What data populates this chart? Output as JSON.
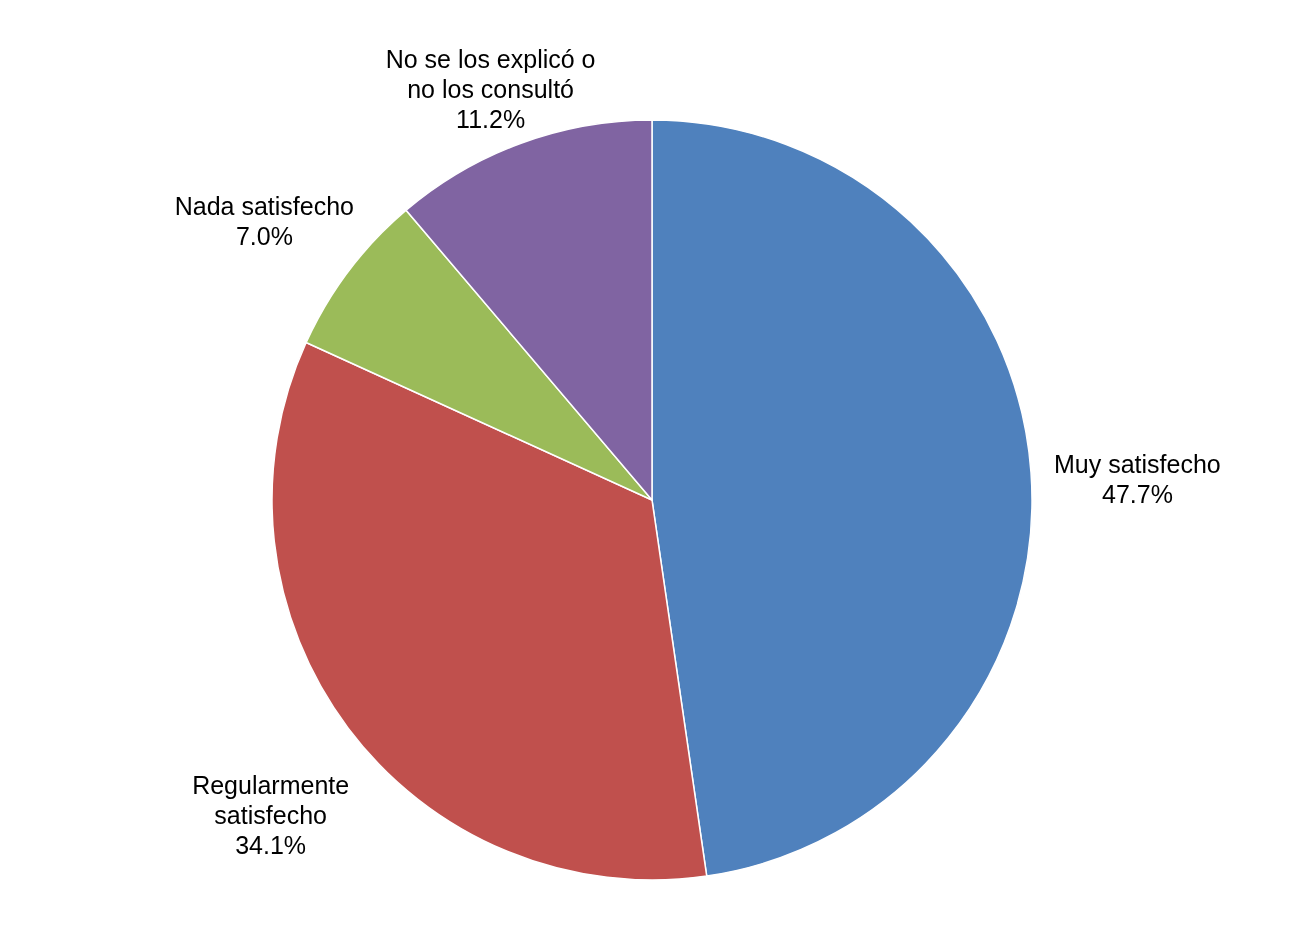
{
  "chart_data": {
    "type": "pie",
    "categories": [
      "Muy satisfecho",
      "Regularmente satisfecho",
      "Nada satisfecho",
      "No se los explicó o no los consultó"
    ],
    "values": [
      47.7,
      34.1,
      7.0,
      11.2
    ],
    "colors": [
      "#4f81bd",
      "#c0504d",
      "#9bbb59",
      "#8064a2"
    ],
    "value_labels": [
      "47.7%",
      "34.1%",
      "7.0%",
      "11.2%"
    ]
  }
}
